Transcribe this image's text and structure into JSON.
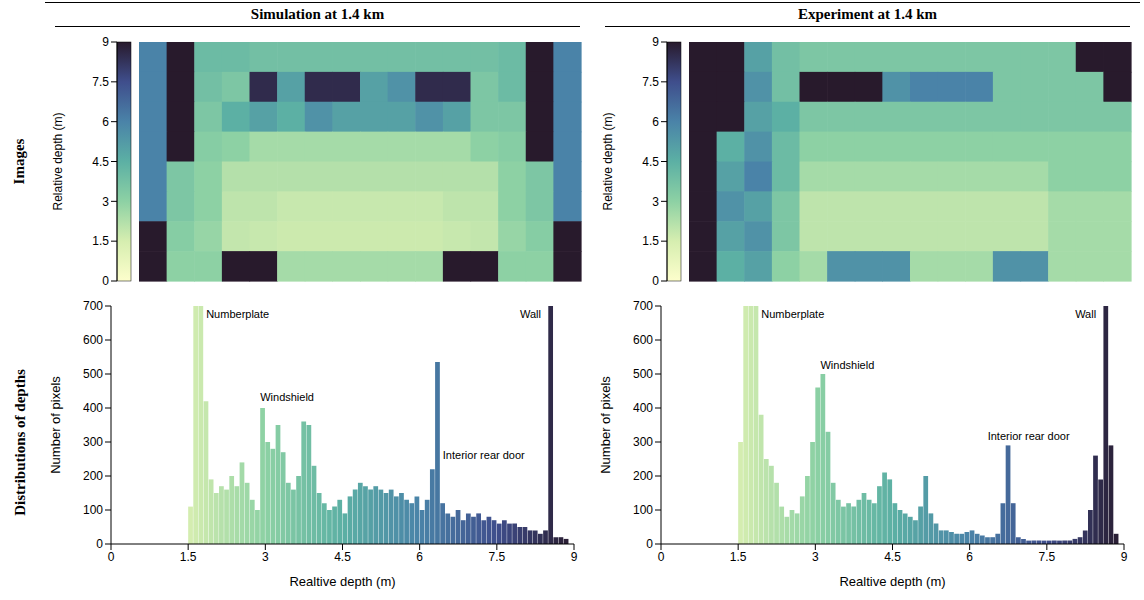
{
  "column_titles": [
    "Simulation at 1.4 km",
    "Experiment at 1.4 km"
  ],
  "row_titles": [
    "Images",
    "Distributions of depths"
  ],
  "chart_data": [
    {
      "type": "heatmap",
      "tick_labels": false,
      "colorbar": {
        "label": "Relative depth (m)",
        "range": [
          0,
          9
        ],
        "ticks": [
          0,
          1.5,
          3,
          4.5,
          6,
          7.5,
          9
        ]
      },
      "cells": [
        [
          6,
          9,
          4,
          4,
          3.8,
          3.8,
          3.8,
          3.8,
          3.8,
          3.8,
          3.8,
          3.8,
          3.8,
          4,
          9,
          6
        ],
        [
          6,
          9,
          3.8,
          3.5,
          8.5,
          5,
          8.5,
          8.5,
          5,
          5.5,
          8.5,
          8.5,
          3.5,
          4,
          9,
          6
        ],
        [
          6,
          9,
          3.5,
          4.5,
          5,
          4.5,
          5.5,
          5,
          5,
          5,
          5.5,
          5,
          3.5,
          3.5,
          9,
          6
        ],
        [
          6,
          9,
          3.2,
          3,
          2.5,
          2.5,
          2.5,
          2.5,
          2.5,
          2.5,
          2.5,
          2.5,
          3,
          3.2,
          9,
          6
        ],
        [
          6,
          3.5,
          3,
          2.2,
          2.2,
          2.2,
          2.2,
          2.2,
          2.2,
          2.2,
          2.2,
          2.2,
          2.2,
          3,
          3.5,
          6
        ],
        [
          6,
          3.5,
          3,
          2,
          2,
          1.8,
          1.8,
          1.8,
          1.8,
          1.8,
          1.8,
          2,
          2,
          3,
          3.5,
          6
        ],
        [
          9,
          3.2,
          2.8,
          1.9,
          1.8,
          1.7,
          1.7,
          1.7,
          1.7,
          1.7,
          1.7,
          1.8,
          1.9,
          2.8,
          3.2,
          9
        ],
        [
          9,
          3,
          3,
          9,
          9,
          2.5,
          2.5,
          2.5,
          2.5,
          2.5,
          2.5,
          9,
          9,
          3,
          3,
          9
        ]
      ]
    },
    {
      "type": "heatmap",
      "tick_labels": false,
      "colorbar": {
        "label": "Relative depth (m)",
        "range": [
          0,
          9
        ],
        "ticks": [
          0,
          1.5,
          3,
          4.5,
          6,
          7.5,
          9
        ]
      },
      "cells": [
        [
          9,
          9,
          5,
          3.8,
          3.5,
          3.5,
          3.5,
          3.5,
          3.5,
          3.5,
          3.5,
          3.5,
          3.5,
          3.5,
          9,
          9
        ],
        [
          9,
          9,
          5.5,
          3.8,
          9,
          9,
          9,
          5.5,
          6,
          6,
          6,
          3.5,
          3.5,
          3.5,
          3.5,
          9
        ],
        [
          9,
          9,
          5,
          4.5,
          3.5,
          3.5,
          3.5,
          3.5,
          3.5,
          3.5,
          3.5,
          3.5,
          3.5,
          3.5,
          3.5,
          3.5
        ],
        [
          9,
          4.5,
          5.5,
          4,
          3,
          3,
          3,
          3,
          3,
          3,
          3,
          3,
          3,
          3,
          3,
          3
        ],
        [
          9,
          5,
          6,
          4,
          2.5,
          2.5,
          2.5,
          2.5,
          2.5,
          2.5,
          2.5,
          2.5,
          2.5,
          3,
          3,
          3
        ],
        [
          9,
          5.5,
          5,
          3.5,
          2,
          2,
          2,
          2,
          2,
          2,
          2,
          2,
          2,
          2.5,
          2.5,
          2.5
        ],
        [
          9,
          5,
          5.5,
          3.5,
          2,
          2,
          2,
          2,
          2,
          2,
          2,
          2,
          2,
          2.5,
          2.5,
          2.5
        ],
        [
          9,
          4.5,
          5,
          3,
          2.5,
          5.5,
          5.5,
          5.5,
          2.5,
          2.5,
          2.5,
          5.5,
          5.5,
          2.5,
          2.5,
          2.5
        ]
      ]
    },
    {
      "type": "histogram",
      "x_label": "Realtive depth (m)",
      "y_label": "Number of pixels",
      "xlim": [
        0,
        9
      ],
      "xticks": [
        0,
        1.5,
        3,
        4.5,
        6,
        7.5,
        9
      ],
      "ylim": [
        0,
        700
      ],
      "yticks": [
        0,
        100,
        200,
        300,
        400,
        500,
        600,
        700
      ],
      "bins": [
        1.5,
        1.6,
        1.7,
        1.8,
        1.9,
        2,
        2.1,
        2.2,
        2.3,
        2.4,
        2.5,
        2.6,
        2.7,
        2.8,
        2.9,
        3,
        3.1,
        3.2,
        3.3,
        3.4,
        3.5,
        3.6,
        3.7,
        3.8,
        3.9,
        4,
        4.1,
        4.2,
        4.3,
        4.4,
        4.5,
        4.6,
        4.7,
        4.8,
        4.9,
        5,
        5.1,
        5.2,
        5.3,
        5.4,
        5.5,
        5.6,
        5.7,
        5.8,
        5.9,
        6,
        6.1,
        6.2,
        6.3,
        6.4,
        6.5,
        6.6,
        6.7,
        6.8,
        6.9,
        7,
        7.1,
        7.2,
        7.3,
        7.4,
        7.5,
        7.6,
        7.7,
        7.8,
        7.9,
        8,
        8.1,
        8.2,
        8.3,
        8.4,
        8.5,
        8.6,
        8.7,
        8.8,
        8.9
      ],
      "values": [
        110,
        700,
        700,
        420,
        190,
        150,
        170,
        160,
        200,
        170,
        240,
        180,
        130,
        100,
        400,
        300,
        280,
        350,
        270,
        180,
        160,
        200,
        360,
        350,
        230,
        150,
        120,
        100,
        110,
        130,
        90,
        140,
        160,
        180,
        170,
        160,
        170,
        160,
        150,
        160,
        140,
        150,
        130,
        120,
        140,
        100,
        130,
        220,
        535,
        120,
        90,
        80,
        100,
        70,
        90,
        80,
        90,
        70,
        80,
        70,
        60,
        70,
        60,
        60,
        50,
        50,
        40,
        40,
        30,
        40,
        700,
        20,
        20,
        15
      ],
      "annotations": [
        {
          "text": "Numberplate",
          "x": 1.85,
          "y": 665
        },
        {
          "text": "Windshield",
          "x": 2.9,
          "y": 420
        },
        {
          "text": "Interior rear door",
          "x": 6.45,
          "y": 250
        },
        {
          "text": "Wall",
          "x": 7.95,
          "y": 665
        }
      ]
    },
    {
      "type": "histogram",
      "x_label": "Realtive depth (m)",
      "y_label": "Number of pixels",
      "xlim": [
        0,
        9
      ],
      "xticks": [
        0,
        1.5,
        3,
        4.5,
        6,
        7.5,
        9
      ],
      "ylim": [
        0,
        700
      ],
      "yticks": [
        0,
        100,
        200,
        300,
        400,
        500,
        600,
        700
      ],
      "bins": [
        1.5,
        1.6,
        1.7,
        1.8,
        1.9,
        2,
        2.1,
        2.2,
        2.3,
        2.4,
        2.5,
        2.6,
        2.7,
        2.8,
        2.9,
        3,
        3.1,
        3.2,
        3.3,
        3.4,
        3.5,
        3.6,
        3.7,
        3.8,
        3.9,
        4,
        4.1,
        4.2,
        4.3,
        4.4,
        4.5,
        4.6,
        4.7,
        4.8,
        4.9,
        5,
        5.1,
        5.2,
        5.3,
        5.4,
        5.5,
        5.6,
        5.7,
        5.8,
        5.9,
        6,
        6.1,
        6.2,
        6.3,
        6.4,
        6.5,
        6.6,
        6.7,
        6.8,
        6.9,
        7,
        7.1,
        7.2,
        7.3,
        7.4,
        7.5,
        7.6,
        7.7,
        7.8,
        7.9,
        8,
        8.1,
        8.2,
        8.3,
        8.4,
        8.5,
        8.6,
        8.7,
        8.8,
        8.9
      ],
      "values": [
        300,
        700,
        700,
        700,
        380,
        250,
        230,
        180,
        110,
        80,
        100,
        90,
        140,
        200,
        300,
        460,
        500,
        330,
        180,
        130,
        110,
        120,
        110,
        130,
        150,
        130,
        120,
        170,
        210,
        190,
        120,
        100,
        90,
        80,
        70,
        110,
        200,
        90,
        60,
        40,
        40,
        35,
        30,
        30,
        35,
        40,
        30,
        25,
        20,
        20,
        30,
        120,
        290,
        120,
        20,
        15,
        10,
        10,
        10,
        10,
        10,
        10,
        10,
        10,
        10,
        15,
        20,
        40,
        100,
        260,
        190,
        700,
        290,
        30
      ],
      "annotations": [
        {
          "text": "Numberplate",
          "x": 1.95,
          "y": 665
        },
        {
          "text": "Windshield",
          "x": 3.1,
          "y": 515
        },
        {
          "text": "Interior rear door",
          "x": 6.35,
          "y": 305
        },
        {
          "text": "Wall",
          "x": 8.05,
          "y": 665
        }
      ]
    }
  ]
}
